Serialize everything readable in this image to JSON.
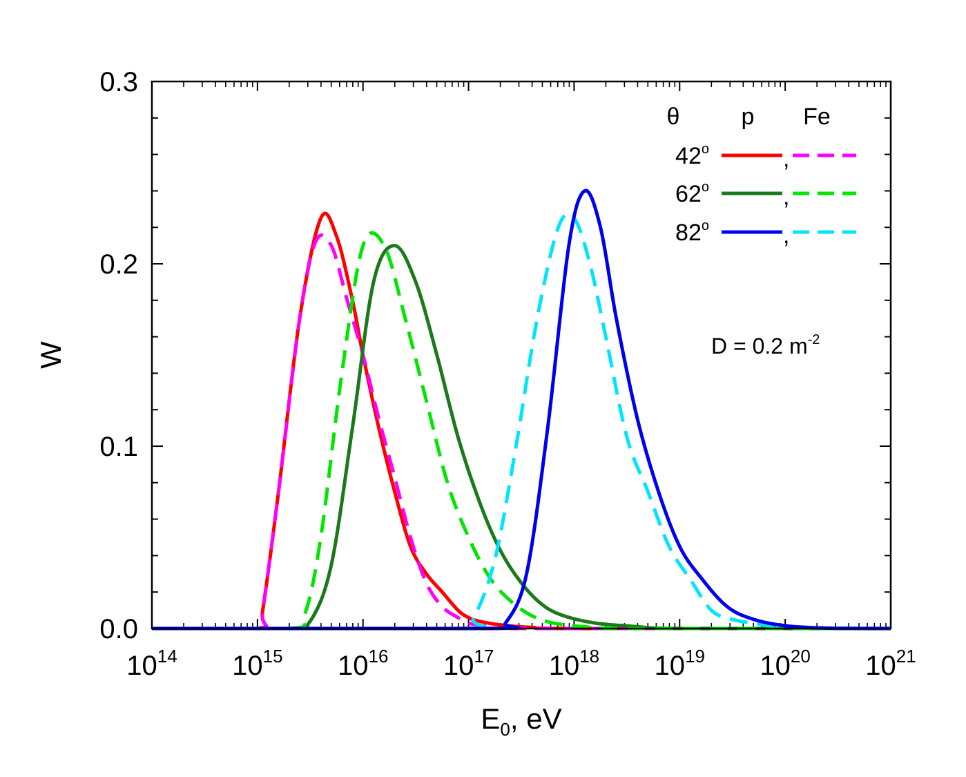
{
  "chart_data": {
    "type": "line",
    "title": "",
    "xlabel": "E",
    "xlabel_subscript": "0",
    "xlabel_suffix": ", eV",
    "ylabel": "W",
    "xscale": "log",
    "xlim_log10": [
      14,
      21
    ],
    "ylim": [
      0,
      0.3
    ],
    "x_ticks": [
      {
        "base": "10",
        "exp": "14"
      },
      {
        "base": "10",
        "exp": "15"
      },
      {
        "base": "10",
        "exp": "16"
      },
      {
        "base": "10",
        "exp": "17"
      },
      {
        "base": "10",
        "exp": "18"
      },
      {
        "base": "10",
        "exp": "19"
      },
      {
        "base": "10",
        "exp": "20"
      },
      {
        "base": "10",
        "exp": "21"
      }
    ],
    "y_ticks": [
      {
        "value": 0.0,
        "label": "0.0"
      },
      {
        "value": 0.1,
        "label": "0.1"
      },
      {
        "value": 0.2,
        "label": "0.2"
      },
      {
        "value": 0.3,
        "label": "0.3"
      }
    ],
    "legend": {
      "position": "top-right",
      "header_theta": "θ",
      "header_p": "p",
      "header_fe": "Fe",
      "separator": ",",
      "degree_mark": "o",
      "rows": [
        {
          "angle": "42",
          "p_series": "p_42",
          "fe_series": "fe_42"
        },
        {
          "angle": "62",
          "p_series": "p_62",
          "fe_series": "fe_62"
        },
        {
          "angle": "82",
          "p_series": "p_82",
          "fe_series": "fe_82"
        }
      ]
    },
    "annotation": {
      "text": "D = 0.2 m",
      "superscript": "-2",
      "position": "right-middle"
    },
    "series": [
      {
        "id": "p_42",
        "name": "p, 42°",
        "color": "#ff0000",
        "dash": false,
        "log10_x": [
          14.0,
          15.0,
          15.05,
          15.2,
          15.4,
          15.6,
          15.75,
          15.9,
          16.0,
          16.15,
          16.3,
          16.45,
          16.6,
          16.75,
          16.9,
          17.0,
          17.1,
          17.3,
          17.6,
          18.0,
          21.0
        ],
        "y": [
          0.0,
          0.0,
          0.01,
          0.075,
          0.17,
          0.225,
          0.215,
          0.18,
          0.15,
          0.11,
          0.075,
          0.045,
          0.03,
          0.02,
          0.01,
          0.006,
          0.004,
          0.002,
          0.0006,
          0.0,
          0.0
        ]
      },
      {
        "id": "fe_42",
        "name": "Fe, 42°",
        "color": "#ff00ff",
        "dash": true,
        "log10_x": [
          14.0,
          15.0,
          15.05,
          15.2,
          15.4,
          15.55,
          15.7,
          15.85,
          16.0,
          16.15,
          16.3,
          16.45,
          16.6,
          16.75,
          16.9,
          17.0,
          17.2,
          17.5,
          21.0
        ],
        "y": [
          0.0,
          0.0,
          0.01,
          0.075,
          0.17,
          0.212,
          0.21,
          0.18,
          0.15,
          0.115,
          0.083,
          0.05,
          0.025,
          0.012,
          0.006,
          0.003,
          0.001,
          0.0,
          0.0
        ]
      },
      {
        "id": "p_62",
        "name": "p, 62°",
        "color": "#1a7a1a",
        "dash": false,
        "log10_x": [
          14.0,
          15.3,
          15.5,
          15.7,
          15.9,
          16.1,
          16.3,
          16.5,
          16.7,
          16.9,
          17.1,
          17.3,
          17.5,
          17.7,
          17.9,
          18.2,
          18.6,
          19.0,
          21.0
        ],
        "y": [
          0.0,
          0.0,
          0.004,
          0.035,
          0.11,
          0.19,
          0.21,
          0.19,
          0.15,
          0.105,
          0.07,
          0.043,
          0.025,
          0.013,
          0.007,
          0.003,
          0.001,
          0.0,
          0.0
        ]
      },
      {
        "id": "fe_62",
        "name": "Fe, 62°",
        "color": "#00e600",
        "dash": true,
        "log10_x": [
          14.0,
          15.3,
          15.45,
          15.6,
          15.8,
          16.0,
          16.2,
          16.4,
          16.6,
          16.8,
          17.0,
          17.2,
          17.4,
          17.6,
          17.8,
          18.1,
          18.5,
          21.0
        ],
        "y": [
          0.0,
          0.0,
          0.008,
          0.05,
          0.14,
          0.21,
          0.21,
          0.17,
          0.125,
          0.08,
          0.05,
          0.028,
          0.015,
          0.007,
          0.003,
          0.001,
          0.0,
          0.0
        ]
      },
      {
        "id": "p_82",
        "name": "p, 82°",
        "color": "#0000ee",
        "dash": false,
        "log10_x": [
          14.0,
          17.2,
          17.35,
          17.55,
          17.75,
          17.95,
          18.1,
          18.25,
          18.4,
          18.6,
          18.8,
          19.0,
          19.2,
          19.45,
          19.7,
          20.0,
          20.4,
          21.0
        ],
        "y": [
          0.0,
          0.0,
          0.003,
          0.03,
          0.11,
          0.21,
          0.24,
          0.22,
          0.17,
          0.115,
          0.075,
          0.045,
          0.028,
          0.012,
          0.005,
          0.0015,
          0.0002,
          0.0
        ]
      },
      {
        "id": "fe_82",
        "name": "Fe, 82°",
        "color": "#00e5ff",
        "dash": true,
        "log10_x": [
          14.0,
          16.9,
          17.05,
          17.25,
          17.45,
          17.65,
          17.85,
          18.0,
          18.15,
          18.3,
          18.5,
          18.7,
          18.9,
          19.1,
          19.3,
          19.5,
          19.8,
          20.1,
          21.0
        ],
        "y": [
          0.0,
          0.0,
          0.006,
          0.038,
          0.1,
          0.17,
          0.22,
          0.225,
          0.2,
          0.16,
          0.105,
          0.075,
          0.045,
          0.027,
          0.01,
          0.005,
          0.002,
          0.0005,
          0.0
        ]
      }
    ]
  }
}
